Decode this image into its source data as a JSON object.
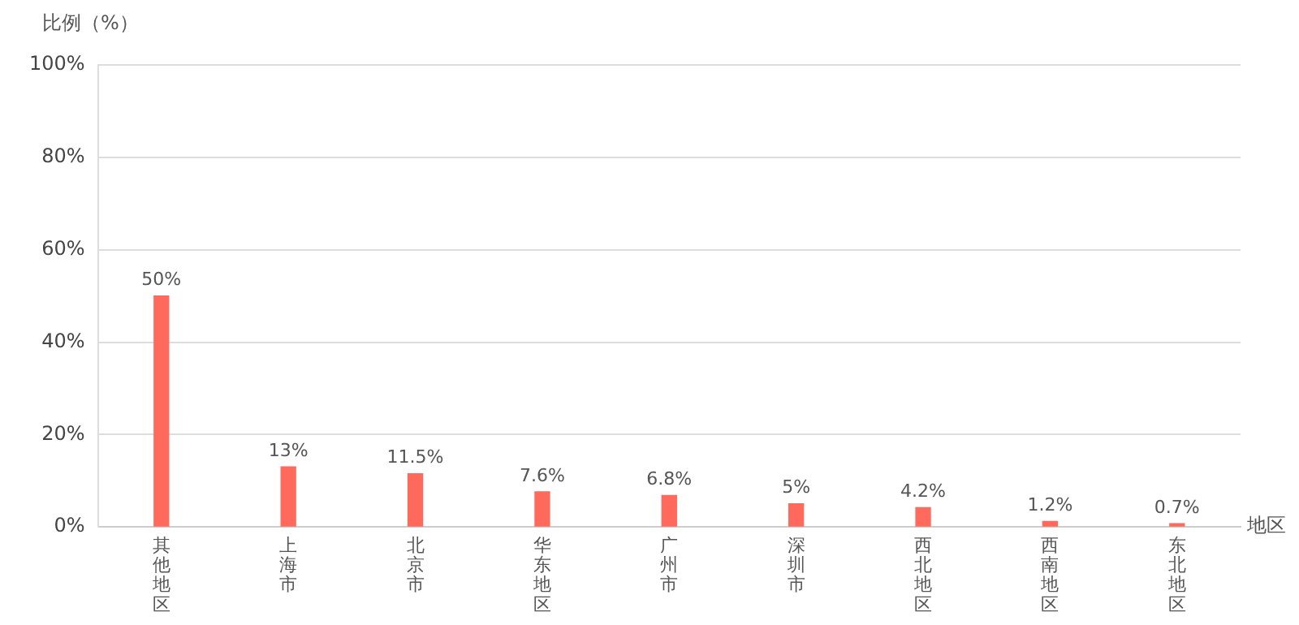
{
  "chart_data": {
    "type": "bar",
    "ylabel": "比例（%）",
    "xlabel": "地区",
    "categories": [
      "其他地区",
      "上海市",
      "北京市",
      "华东地区",
      "广州市",
      "深圳市",
      "西北地区",
      "西南地区",
      "东北地区"
    ],
    "values": [
      50,
      13,
      11.5,
      7.6,
      6.8,
      5,
      4.2,
      1.2,
      0.7
    ],
    "value_labels": [
      "50%",
      "13%",
      "11.5%",
      "7.6%",
      "6.8%",
      "5%",
      "4.2%",
      "1.2%",
      "0.7%"
    ],
    "color": "#ff6a5c",
    "ylim": [
      0,
      100
    ],
    "yticks": [
      {
        "value": 0,
        "label": "0%"
      },
      {
        "value": 20,
        "label": "20%"
      },
      {
        "value": 40,
        "label": "40%"
      },
      {
        "value": 60,
        "label": "60%"
      },
      {
        "value": 80,
        "label": "80%"
      },
      {
        "value": 100,
        "label": "100%"
      }
    ],
    "grid": "y"
  }
}
